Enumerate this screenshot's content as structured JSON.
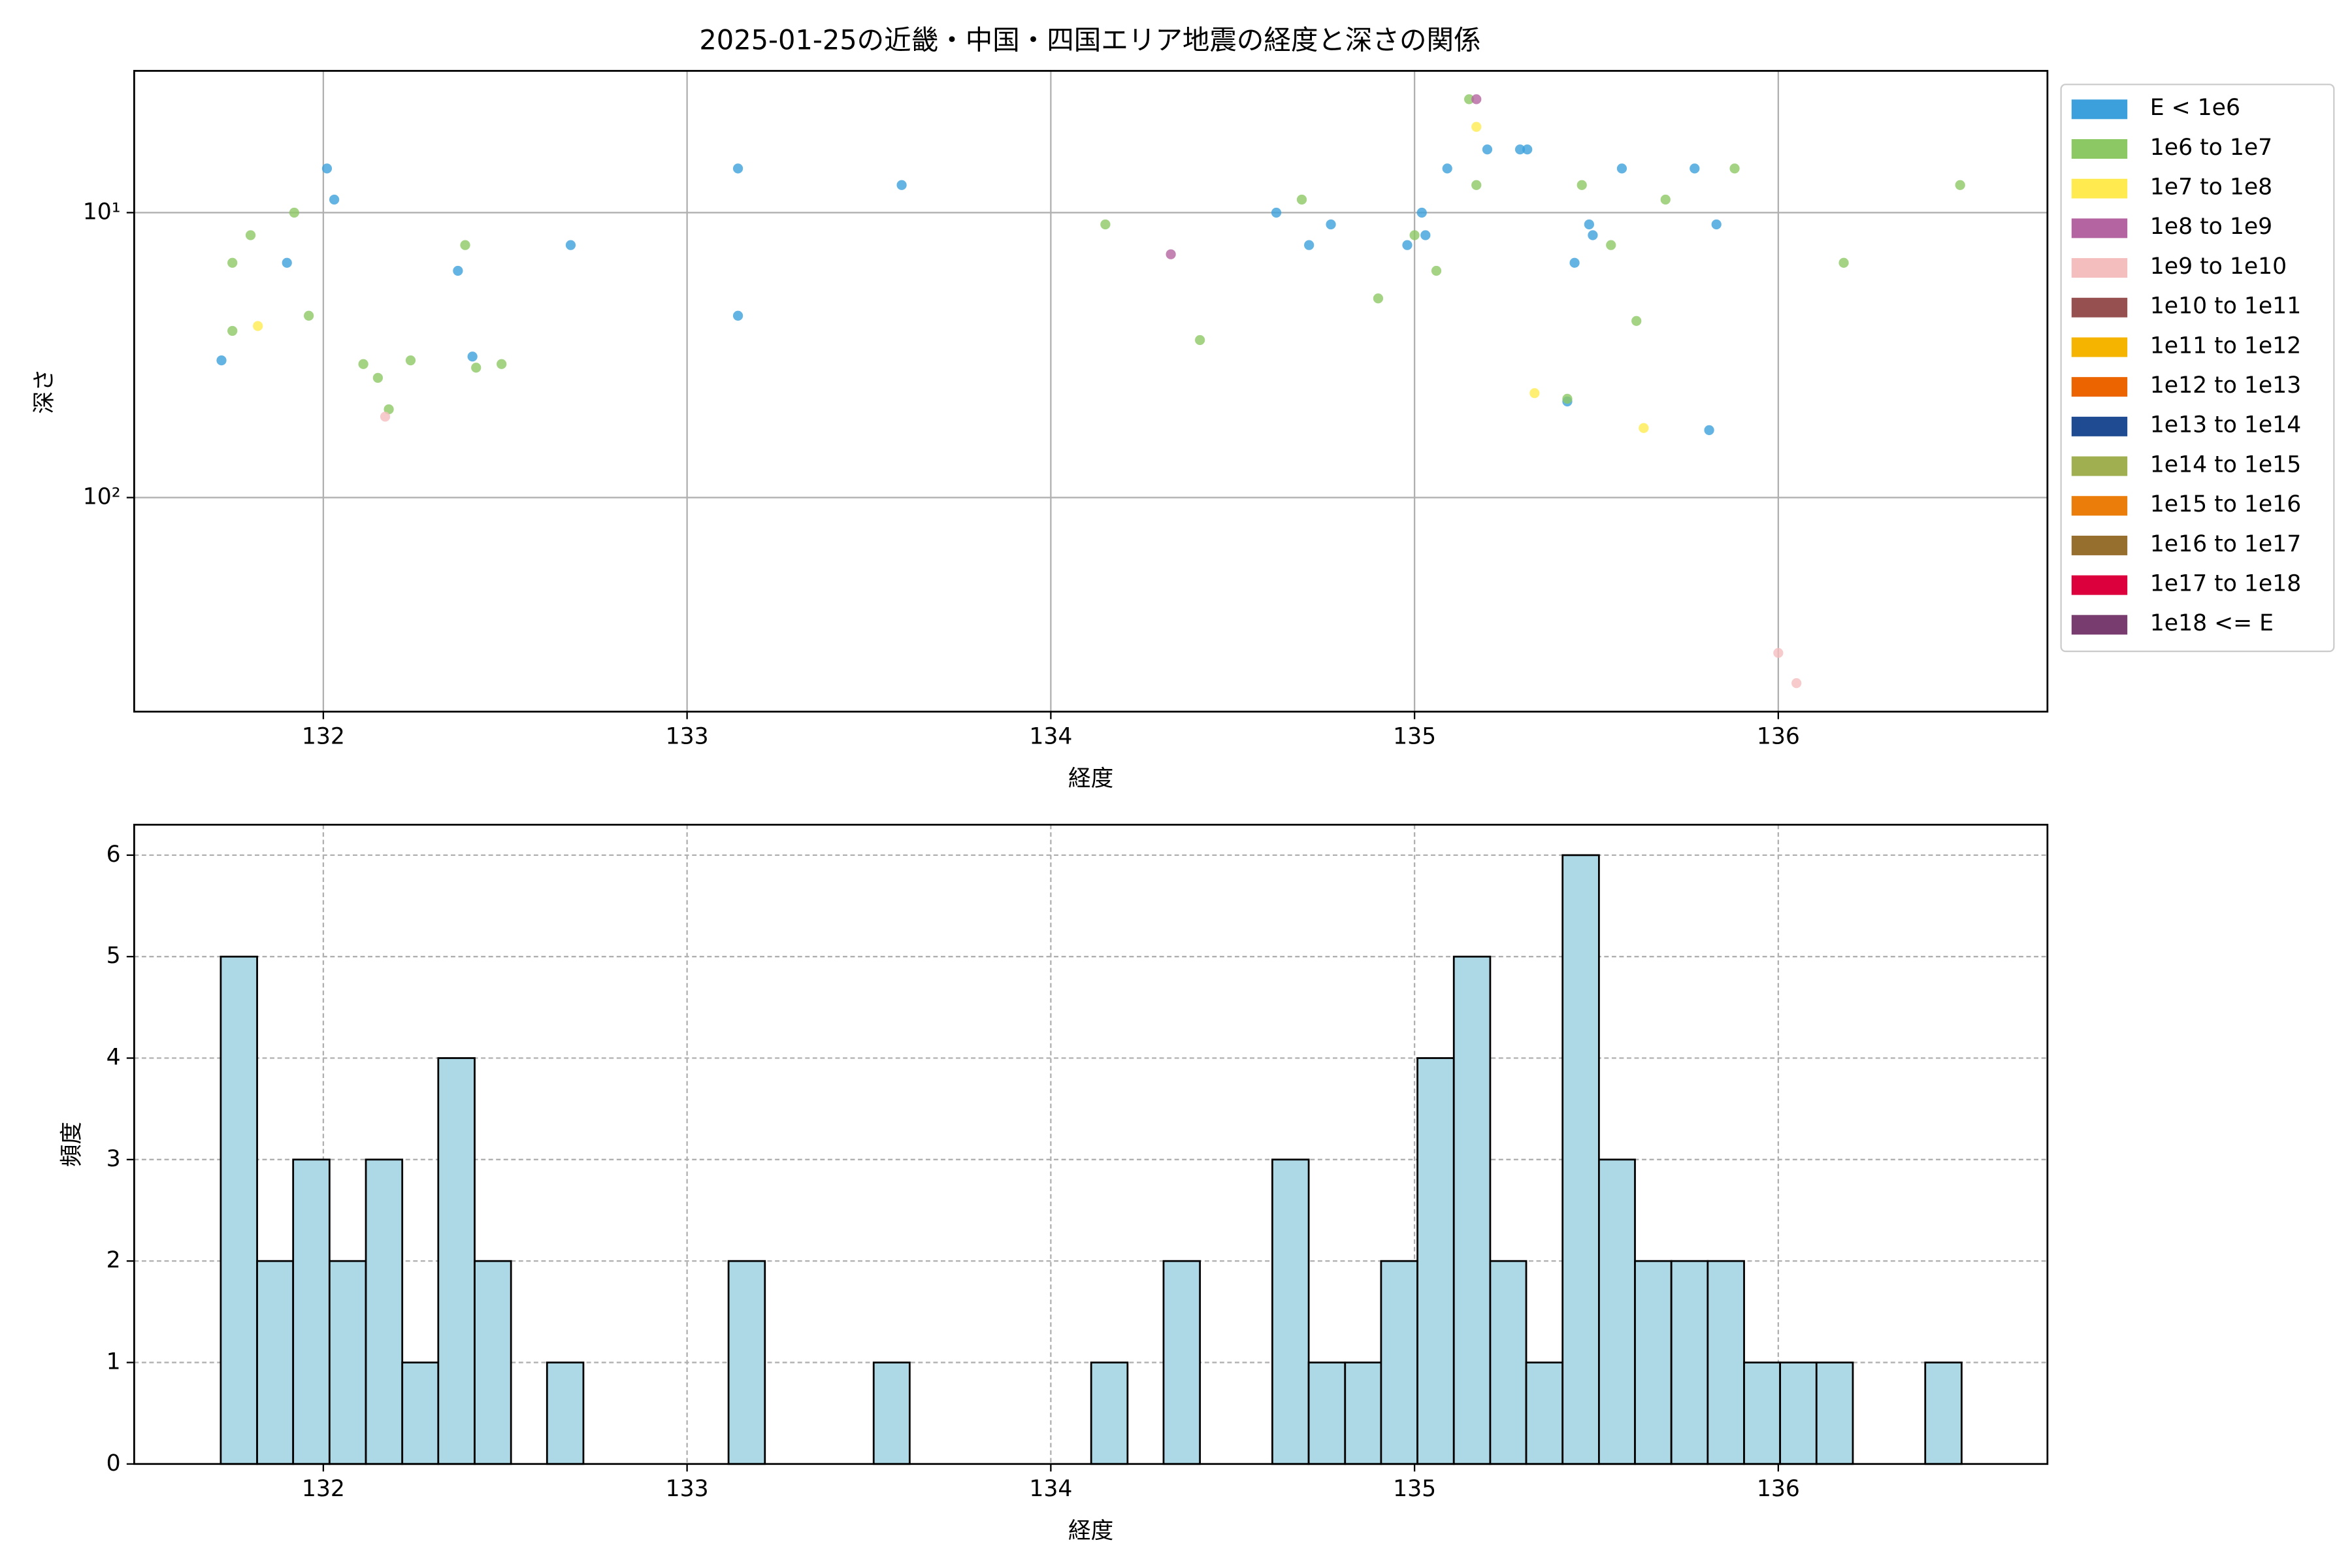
{
  "chart_data": [
    {
      "type": "scatter",
      "title": "2025-01-25の近畿・中国・四国エリア地震の経度と深さの関係",
      "xlabel": "経度",
      "ylabel": "深さ",
      "xlim": [
        131.48,
        136.74
      ],
      "xticks": [
        132,
        133,
        134,
        135,
        136
      ],
      "ylim": [
        3.18,
        564
      ],
      "yscale": "log",
      "yinverted": true,
      "yticks": [
        {
          "value": 10,
          "label": "10¹"
        },
        {
          "value": 100,
          "label": "10²"
        }
      ],
      "grid": true,
      "legend": "outside-upper-right",
      "series": [
        {
          "name": "E < 1e6",
          "color": "#3ca0dc",
          "x": [
            131.72,
            131.9,
            132.01,
            132.03,
            132.37,
            132.41,
            132.68,
            133.14,
            133.14,
            133.59,
            134.62,
            134.71,
            134.77,
            134.98,
            135.02,
            135.03,
            135.09,
            135.2,
            135.29,
            135.31,
            135.44,
            135.42,
            135.48,
            135.49,
            135.57,
            135.77,
            135.81,
            135.83
          ],
          "values": [
            33,
            15,
            7,
            9,
            16,
            32,
            13,
            7,
            23,
            8,
            10,
            13,
            11,
            13,
            10,
            12,
            7,
            6,
            6,
            6,
            15,
            46,
            11,
            12,
            7,
            7,
            58,
            11
          ]
        },
        {
          "name": "1e6 to 1e7",
          "color": "#8cc864",
          "x": [
            131.75,
            131.8,
            131.92,
            131.75,
            131.96,
            132.11,
            132.15,
            132.18,
            132.24,
            132.39,
            132.42,
            132.49,
            134.15,
            134.41,
            134.69,
            134.9,
            135.0,
            135.06,
            135.15,
            135.17,
            135.46,
            135.54,
            135.61,
            135.69,
            135.88,
            136.18,
            136.5,
            135.42
          ],
          "values": [
            15,
            12,
            10,
            26,
            23,
            34,
            38,
            49,
            33,
            13,
            35,
            34,
            11,
            28,
            9,
            20,
            12,
            16,
            4,
            8,
            8,
            13,
            24,
            9,
            7,
            15,
            8,
            45
          ]
        },
        {
          "name": "1e7 to 1e8",
          "color": "#ffeb50",
          "x": [
            131.82,
            135.17,
            135.33,
            135.63
          ],
          "values": [
            25,
            5,
            43,
            57
          ]
        },
        {
          "name": "1e8 to 1e9",
          "color": "#b464a0",
          "x": [
            134.33,
            135.17
          ],
          "values": [
            14,
            4
          ]
        },
        {
          "name": "1e9 to 1e10",
          "color": "#f5bebe",
          "x": [
            132.17,
            136.0,
            136.05
          ],
          "values": [
            52,
            351,
            448
          ]
        },
        {
          "name": "1e10 to 1e11",
          "color": "#965050",
          "x": [],
          "values": []
        },
        {
          "name": "1e11 to 1e12",
          "color": "#f5b400",
          "x": [],
          "values": []
        },
        {
          "name": "1e12 to 1e13",
          "color": "#eb6400",
          "x": [],
          "values": []
        },
        {
          "name": "1e13 to 1e14",
          "color": "#1e4b91",
          "x": [],
          "values": []
        },
        {
          "name": "1e14 to 1e15",
          "color": "#a0af50",
          "x": [],
          "values": []
        },
        {
          "name": "1e15 to 1e16",
          "color": "#eb7d0a",
          "x": [],
          "values": []
        },
        {
          "name": "1e16 to 1e17",
          "color": "#966e2d",
          "x": [],
          "values": []
        },
        {
          "name": "1e17 to 1e18",
          "color": "#dc003c",
          "x": [],
          "values": []
        },
        {
          "name": "1e18 <= E",
          "color": "#783c6e",
          "x": [],
          "values": []
        }
      ]
    },
    {
      "type": "histogram",
      "xlabel": "経度",
      "ylabel": "頻度",
      "xlim": [
        131.48,
        136.74
      ],
      "xticks": [
        132,
        133,
        134,
        135,
        136
      ],
      "ylim": [
        0,
        6.3
      ],
      "yticks": [
        0,
        1,
        2,
        3,
        4,
        5,
        6
      ],
      "grid": true,
      "color": "#add8e6",
      "edgecolor": "#000000",
      "bins": [
        131.718,
        131.818,
        131.917,
        132.017,
        132.117,
        132.217,
        132.316,
        132.416,
        132.516,
        132.615,
        132.715,
        132.815,
        132.914,
        133.014,
        133.114,
        133.214,
        133.313,
        133.413,
        133.513,
        133.612,
        133.712,
        133.812,
        133.911,
        134.011,
        134.111,
        134.211,
        134.31,
        134.41,
        134.51,
        134.609,
        134.709,
        134.809,
        134.908,
        135.008,
        135.108,
        135.208,
        135.307,
        135.407,
        135.507,
        135.606,
        135.706,
        135.806,
        135.906,
        136.005,
        136.105,
        136.205,
        136.304,
        136.404,
        136.504
      ],
      "values": [
        5,
        2,
        3,
        2,
        3,
        1,
        4,
        2,
        0,
        1,
        0,
        0,
        0,
        0,
        2,
        0,
        0,
        0,
        1,
        0,
        0,
        0,
        0,
        0,
        1,
        0,
        2,
        0,
        0,
        3,
        1,
        1,
        2,
        4,
        5,
        2,
        1,
        6,
        3,
        2,
        2,
        2,
        1,
        1,
        1,
        0,
        0,
        1
      ]
    }
  ]
}
